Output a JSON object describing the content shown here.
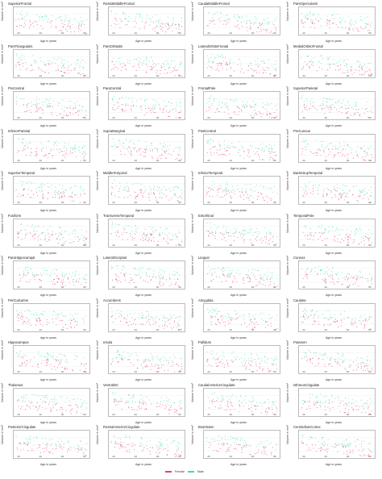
{
  "chart_data": {
    "type": "scatter",
    "xlabel": "Age in years",
    "ylabel": "Volume in mm³",
    "xlim": [
      20,
      90
    ],
    "xticks": [
      "20",
      "40",
      "60",
      "80"
    ],
    "panels": [
      "SuperiorFrontal",
      "RostralMiddleFrontal",
      "CaudalMiddleFrontal",
      "ParsOpercularis",
      "ParsTriangularis",
      "ParsOrbitalis",
      "LateralOrbitoFrontal",
      "MedialOrbitoFrontal",
      "PreCentral",
      "ParaCentral",
      "FrontalPole",
      "SuperiorParietal",
      "InferiorParietal",
      "SupraMarginal",
      "PostCentral",
      "PreCuneus",
      "SuperiorTemporal",
      "MiddleTemporal",
      "InferiorTemporal",
      "BanksSupTemporal",
      "Fusiform",
      "TransverseTemporal",
      "Entorhinal",
      "TemporalPole",
      "ParaHippocampal",
      "LateralOccipital",
      "Lingual",
      "Cuneus",
      "PeriCalcarine",
      "Accumbens",
      "Amygdala",
      "Caudate",
      "Hippocampus",
      "Insula",
      "Pallidum",
      "Putamen",
      "Thalamus",
      "VentralDC",
      "CaudalAnteriorCingulate",
      "IsthmusCingulate",
      "PosteriorCingulate",
      "RostralAnteriorCingulate",
      "BrainStem",
      "CerebellumCortex"
    ],
    "series": [
      {
        "name": "Male",
        "color": "#3ddbb0"
      },
      {
        "name": "Female",
        "color": "#e83e6e"
      }
    ],
    "legend": "bottom",
    "grid": true
  }
}
